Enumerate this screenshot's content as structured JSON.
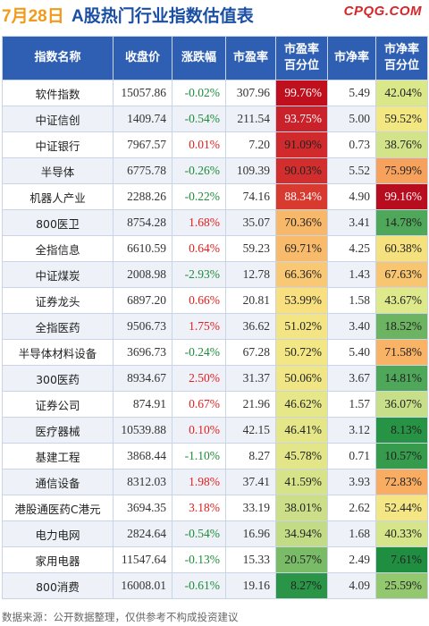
{
  "header": {
    "date": "7月28日",
    "title": "A股热门行业指数估值表",
    "brand": "CPQG.COM"
  },
  "columns": [
    "指数名称",
    "收盘价",
    "涨跌幅",
    "市盈率",
    "市盈率\n百分位",
    "市净率",
    "市净率\n百分位"
  ],
  "rows": [
    {
      "name": "软件指数",
      "close": "15057.86",
      "change": "-0.02%",
      "pe": "307.96",
      "pe_pct": "99.76%",
      "pb": "5.49",
      "pb_pct": "42.04%",
      "pe_color": "#c0101e",
      "pb_color": "#dbe88a",
      "pe_text": "#ffffff",
      "pb_text": "#222222"
    },
    {
      "name": "中证信创",
      "close": "1409.74",
      "change": "-0.54%",
      "pe": "211.54",
      "pe_pct": "93.75%",
      "pb": "5.00",
      "pb_pct": "59.52%",
      "pe_color": "#c9222a",
      "pb_color": "#f3e782",
      "pe_text": "#ffffff",
      "pb_text": "#222222"
    },
    {
      "name": "中证银行",
      "close": "7967.57",
      "change": "0.01%",
      "pe": "7.20",
      "pe_pct": "91.09%",
      "pb": "0.73",
      "pb_pct": "38.76%",
      "pe_color": "#d02a2d",
      "pb_color": "#d2e38a",
      "pe_text": "#222222",
      "pb_text": "#222222"
    },
    {
      "name": "半导体",
      "close": "6775.78",
      "change": "-0.26%",
      "pe": "109.39",
      "pe_pct": "90.03%",
      "pb": "5.52",
      "pb_pct": "75.99%",
      "pe_color": "#d22e2e",
      "pb_color": "#f7a25c",
      "pe_text": "#222222",
      "pb_text": "#222222"
    },
    {
      "name": "机器人产业",
      "close": "2288.26",
      "change": "-0.22%",
      "pe": "74.16",
      "pe_pct": "88.34%",
      "pb": "4.90",
      "pb_pct": "99.16%",
      "pe_color": "#d83a30",
      "pb_color": "#b80d1e",
      "pe_text": "#ffffff",
      "pb_text": "#ffffff"
    },
    {
      "name": "800医卫",
      "close": "8754.28",
      "change": "1.68%",
      "pe": "35.07",
      "pe_pct": "70.36%",
      "pb": "3.41",
      "pb_pct": "14.78%",
      "pe_color": "#f7b86a",
      "pb_color": "#4fa85a",
      "pe_text": "#222222",
      "pb_text": "#222222"
    },
    {
      "name": "全指信息",
      "close": "6610.59",
      "change": "0.64%",
      "pe": "59.23",
      "pe_pct": "69.71%",
      "pb": "4.25",
      "pb_pct": "60.38%",
      "pe_color": "#f8bb6c",
      "pb_color": "#f5e27e",
      "pe_text": "#222222",
      "pb_text": "#222222"
    },
    {
      "name": "中证煤炭",
      "close": "2008.98",
      "change": "-2.93%",
      "pe": "12.78",
      "pe_pct": "66.36%",
      "pb": "1.43",
      "pb_pct": "67.63%",
      "pe_color": "#f9c874",
      "pb_color": "#f8c670",
      "pe_text": "#222222",
      "pb_text": "#222222"
    },
    {
      "name": "证券龙头",
      "close": "6897.20",
      "change": "0.66%",
      "pe": "20.81",
      "pe_pct": "53.99%",
      "pb": "1.58",
      "pb_pct": "43.67%",
      "pe_color": "#f8e080",
      "pb_color": "#dde98a",
      "pe_text": "#222222",
      "pb_text": "#222222"
    },
    {
      "name": "全指医药",
      "close": "9506.73",
      "change": "1.75%",
      "pe": "36.62",
      "pe_pct": "51.02%",
      "pb": "3.40",
      "pb_pct": "18.52%",
      "pe_color": "#f4e584",
      "pb_color": "#6cb462",
      "pe_text": "#222222",
      "pb_text": "#222222"
    },
    {
      "name": "半导体材料设备",
      "close": "3696.73",
      "change": "-0.24%",
      "pe": "67.28",
      "pe_pct": "50.72%",
      "pb": "5.40",
      "pb_pct": "71.58%",
      "pe_color": "#f3e684",
      "pb_color": "#f8b366",
      "pe_text": "#222222",
      "pb_text": "#222222"
    },
    {
      "name": "300医药",
      "close": "8934.67",
      "change": "2.50%",
      "pe": "31.37",
      "pe_pct": "50.06%",
      "pb": "3.67",
      "pb_pct": "14.81%",
      "pe_color": "#f1e686",
      "pb_color": "#4fa85a",
      "pe_text": "#222222",
      "pb_text": "#222222"
    },
    {
      "name": "证券公司",
      "close": "874.91",
      "change": "0.67%",
      "pe": "21.96",
      "pe_pct": "46.62%",
      "pb": "1.57",
      "pb_pct": "36.07%",
      "pe_color": "#e6e788",
      "pb_color": "#c7df88",
      "pe_text": "#222222",
      "pb_text": "#222222"
    },
    {
      "name": "医疗器械",
      "close": "10539.88",
      "change": "0.10%",
      "pe": "42.15",
      "pe_pct": "46.41%",
      "pb": "3.12",
      "pb_pct": "8.13%",
      "pe_color": "#e4e688",
      "pb_color": "#279344",
      "pe_text": "#222222",
      "pb_text": "#222222"
    },
    {
      "name": "基建工程",
      "close": "3868.44",
      "change": "-1.10%",
      "pe": "8.27",
      "pe_pct": "45.78%",
      "pb": "0.71",
      "pb_pct": "10.57%",
      "pe_color": "#e2e688",
      "pb_color": "#369b4c",
      "pe_text": "#222222",
      "pb_text": "#222222"
    },
    {
      "name": "通信设备",
      "close": "8312.03",
      "change": "1.98%",
      "pe": "37.41",
      "pe_pct": "41.59%",
      "pb": "3.93",
      "pb_pct": "72.83%",
      "pe_color": "#d7e388",
      "pb_color": "#f8ad62",
      "pe_text": "#222222",
      "pb_text": "#222222"
    },
    {
      "name": "港股通医药C港元",
      "close": "3694.35",
      "change": "3.18%",
      "pe": "33.19",
      "pe_pct": "38.01%",
      "pb": "2.62",
      "pb_pct": "52.44%",
      "pe_color": "#ccdf88",
      "pb_color": "#f4e684",
      "pe_text": "#222222",
      "pb_text": "#222222"
    },
    {
      "name": "电力电网",
      "close": "2824.64",
      "change": "-0.54%",
      "pe": "16.96",
      "pe_pct": "34.94%",
      "pb": "1.68",
      "pb_pct": "40.33%",
      "pe_color": "#c2dc86",
      "pb_color": "#d6e589",
      "pe_text": "#222222",
      "pb_text": "#222222"
    },
    {
      "name": "家用电器",
      "close": "11547.64",
      "change": "-0.13%",
      "pe": "15.33",
      "pe_pct": "20.57%",
      "pb": "2.49",
      "pb_pct": "7.61%",
      "pe_color": "#79bb66",
      "pb_color": "#1f8e40",
      "pe_text": "#222222",
      "pb_text": "#222222"
    },
    {
      "name": "800消费",
      "close": "16008.01",
      "change": "-0.61%",
      "pe": "19.16",
      "pe_pct": "8.27%",
      "pb": "4.09",
      "pb_pct": "25.59%",
      "pe_color": "#2a9546",
      "pb_color": "#93c86e",
      "pe_text": "#222222",
      "pb_text": "#222222"
    }
  ],
  "footer": "数据来源：公开数据整理，仅供参考不构成投资建议"
}
